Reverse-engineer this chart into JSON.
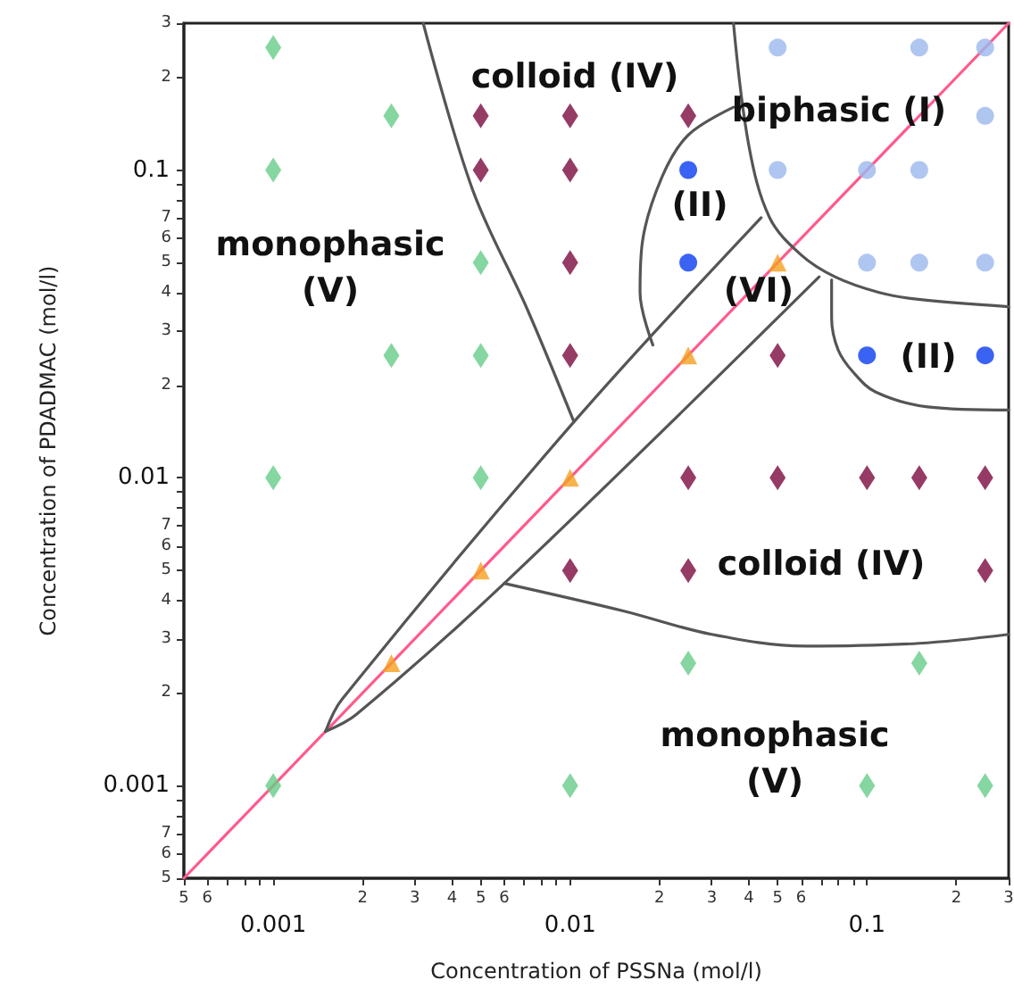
{
  "chart_data": {
    "type": "scatter",
    "xlabel": "Concentration of PSSNa (mol/l)",
    "ylabel": "Concentration of PDADMAC (mol/l)",
    "log": "xy",
    "grid": false,
    "xlim": [
      0.0005,
      0.3
    ],
    "ylim": [
      0.0005,
      0.3
    ],
    "xticks": [
      {
        "value": 0.0005,
        "label": null
      },
      {
        "value": 0.0006,
        "label": null
      },
      {
        "value": 0.0007,
        "label": null
      },
      {
        "value": 0.0008,
        "label": null
      },
      {
        "value": 0.0009,
        "label": null
      },
      0.001,
      {
        "value": 0.002,
        "label": null
      },
      {
        "value": 0.003,
        "label": null
      },
      {
        "value": 0.004,
        "label": null
      },
      {
        "value": 0.005,
        "label": null
      },
      {
        "value": 0.006,
        "label": null
      },
      {
        "value": 0.007,
        "label": null
      },
      {
        "value": 0.008,
        "label": null
      },
      {
        "value": 0.009,
        "label": null
      },
      0.01,
      {
        "value": 0.02,
        "label": null
      },
      {
        "value": 0.03,
        "label": null
      },
      {
        "value": 0.04,
        "label": null
      },
      {
        "value": 0.05,
        "label": null
      },
      {
        "value": 0.06,
        "label": null
      },
      {
        "value": 0.07,
        "label": null
      },
      {
        "value": 0.08,
        "label": null
      },
      {
        "value": 0.09,
        "label": null
      },
      0.1,
      {
        "value": 0.2,
        "label": null
      },
      {
        "value": 0.3,
        "label": null
      }
    ],
    "yticks": [
      {
        "value": 0.0005,
        "label": null
      },
      {
        "value": 0.0006,
        "label": null
      },
      {
        "value": 0.0007,
        "label": null
      },
      {
        "value": 0.0008,
        "label": null
      },
      {
        "value": 0.0009,
        "label": null
      },
      0.001,
      {
        "value": 0.002,
        "label": null
      },
      {
        "value": 0.003,
        "label": null
      },
      {
        "value": 0.004,
        "label": null
      },
      {
        "value": 0.005,
        "label": null
      },
      {
        "value": 0.006,
        "label": null
      },
      {
        "value": 0.007,
        "label": null
      },
      {
        "value": 0.008,
        "label": null
      },
      {
        "value": 0.009,
        "label": null
      },
      0.01,
      {
        "value": 0.02,
        "label": null
      },
      {
        "value": 0.03,
        "label": null
      },
      {
        "value": 0.04,
        "label": null
      },
      {
        "value": 0.05,
        "label": null
      },
      {
        "value": 0.06,
        "label": null
      },
      {
        "value": 0.07,
        "label": null
      },
      {
        "value": 0.08,
        "label": null
      },
      {
        "value": 0.09,
        "label": null
      },
      0.1,
      {
        "value": 0.2,
        "label": null
      },
      {
        "value": 0.3,
        "label": null
      }
    ],
    "series": [
      {
        "type": "line",
        "color": "#ff5a8c",
        "marker": "none",
        "x": [
          0.0005,
          0.3
        ],
        "values": [
          0.0005,
          0.3
        ]
      },
      {
        "type": "line",
        "color": "#555555",
        "marker": "none",
        "x": [
          0.0032,
          0.0047,
          0.0072,
          0.0103
        ],
        "values": [
          0.3,
          0.086,
          0.035,
          0.0152
        ]
      },
      {
        "type": "line",
        "color": "#555555",
        "marker": "none",
        "x": [
          0.0015,
          0.0017,
          0.0103,
          0.044
        ],
        "values": [
          0.0015,
          0.0019,
          0.0152,
          0.07
        ]
      },
      {
        "type": "line",
        "color": "#555555",
        "marker": "none",
        "x": [
          0.0015,
          0.0019,
          0.006,
          0.069
        ],
        "values": [
          0.0015,
          0.0017,
          0.00454,
          0.045
        ]
      },
      {
        "type": "line",
        "color": "#555555",
        "marker": "none",
        "x": [
          0.006,
          0.015,
          0.03,
          0.062,
          0.15,
          0.3
        ],
        "values": [
          0.00454,
          0.0037,
          0.0031,
          0.00284,
          0.0029,
          0.0031
        ]
      },
      {
        "type": "line",
        "color": "#555555",
        "marker": "none",
        "x": [
          0.0355,
          0.04,
          0.047,
          0.06,
          0.078,
          0.11,
          0.149,
          0.3
        ],
        "values": [
          0.3,
          0.12,
          0.07,
          0.053,
          0.045,
          0.04,
          0.038,
          0.036
        ]
      },
      {
        "type": "line",
        "color": "#555555",
        "marker": "none",
        "x": [
          0.0355,
          0.025,
          0.0204,
          0.0175,
          0.0172,
          0.019
        ],
        "values": [
          0.16,
          0.13,
          0.095,
          0.058,
          0.04,
          0.027
        ]
      },
      {
        "type": "line",
        "color": "#555555",
        "marker": "none",
        "x": [
          0.076,
          0.076,
          0.08,
          0.09,
          0.107,
          0.16,
          0.3
        ],
        "values": [
          0.044,
          0.033,
          0.026,
          0.022,
          0.019,
          0.017,
          0.0166
        ]
      },
      {
        "color": "#66cc88",
        "marker": "diamond",
        "x": [
          0.001,
          0.0025,
          0.001,
          0.005,
          0.0025,
          0.005,
          0.001,
          0.005,
          0.025,
          0.15,
          0.001,
          0.01,
          0.1,
          0.25
        ],
        "values": [
          0.25,
          0.15,
          0.1,
          0.05,
          0.025,
          0.025,
          0.01,
          0.01,
          0.0025,
          0.0025,
          0.001,
          0.001,
          0.001,
          0.001
        ]
      },
      {
        "color": "#7a0a3e",
        "marker": "diamond",
        "x": [
          0.005,
          0.01,
          0.025,
          0.005,
          0.01,
          0.01,
          0.01,
          0.05,
          0.025,
          0.05,
          0.1,
          0.15,
          0.25,
          0.01,
          0.025,
          0.25
        ],
        "values": [
          0.15,
          0.15,
          0.15,
          0.1,
          0.1,
          0.05,
          0.025,
          0.025,
          0.01,
          0.01,
          0.01,
          0.01,
          0.01,
          0.005,
          0.005,
          0.005
        ]
      },
      {
        "color": "#0a3cf0",
        "marker": "circle",
        "x": [
          0.025,
          0.025,
          0.1,
          0.25
        ],
        "values": [
          0.1,
          0.05,
          0.025,
          0.025
        ]
      },
      {
        "color": "#9bb8ee",
        "marker": "circle",
        "x": [
          0.05,
          0.15,
          0.25,
          0.25,
          0.05,
          0.1,
          0.15,
          0.1,
          0.15,
          0.25
        ],
        "values": [
          0.25,
          0.25,
          0.25,
          0.15,
          0.1,
          0.1,
          0.1,
          0.05,
          0.05,
          0.05
        ]
      },
      {
        "color": "#f5a020",
        "marker": "triangle",
        "x": [
          0.0025,
          0.005,
          0.01,
          0.025,
          0.05
        ],
        "values": [
          0.0025,
          0.005,
          0.01,
          0.025,
          0.05
        ]
      }
    ],
    "annotations": [
      "colloid (IV)",
      "biphasic (I)",
      "(II)",
      "monophasic\n(V)",
      "(VI)",
      "(II)",
      "colloid (IV)",
      "monophasic\n(V)",
      "5",
      "6",
      "2",
      "3",
      "4",
      "5",
      "6",
      "2",
      "3",
      "4",
      "5",
      "6",
      "2",
      "3",
      "5",
      "6",
      "7",
      "2",
      "3",
      "4",
      "5",
      "6",
      "7",
      "2",
      "3",
      "4",
      "5",
      "6",
      "7",
      "2",
      "3"
    ]
  }
}
